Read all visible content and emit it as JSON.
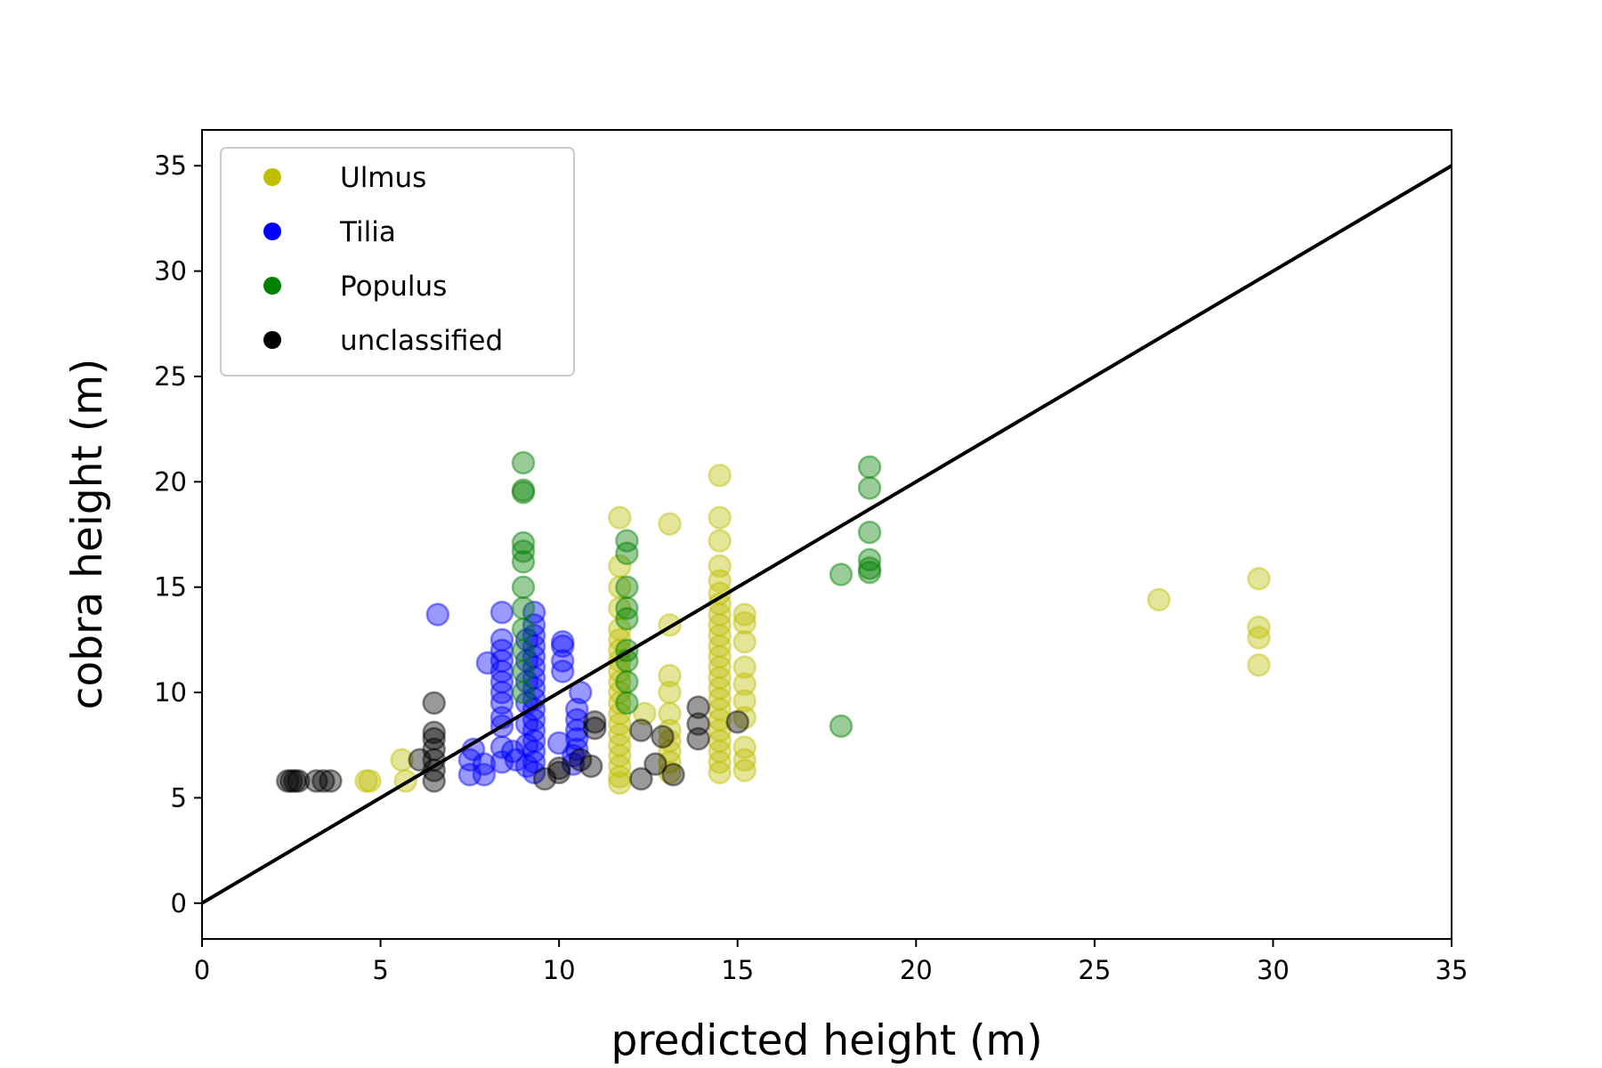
{
  "chart_data": {
    "type": "scatter",
    "title": "",
    "xlabel": "predicted height (m)",
    "ylabel": "cobra height (m)",
    "xlim": [
      0,
      35
    ],
    "ylim": [
      -1.7,
      36.7
    ],
    "xticks": [
      "0",
      "5",
      "10",
      "15",
      "20",
      "25",
      "30",
      "35"
    ],
    "yticks": [
      "0",
      "5",
      "10",
      "15",
      "20",
      "25",
      "30",
      "35"
    ],
    "grid": false,
    "legend_position": "top-left",
    "reference_line": {
      "x": [
        0,
        35
      ],
      "y": [
        0,
        35
      ],
      "color": "#000000"
    },
    "series": [
      {
        "name": "Ulmus",
        "color": "#bfbf00",
        "points": [
          [
            4.6,
            5.8
          ],
          [
            4.7,
            5.8
          ],
          [
            5.7,
            5.8
          ],
          [
            5.6,
            6.8
          ],
          [
            11.7,
            5.7
          ],
          [
            11.7,
            6.0
          ],
          [
            11.7,
            6.5
          ],
          [
            11.7,
            7.0
          ],
          [
            11.7,
            7.5
          ],
          [
            11.7,
            8.0
          ],
          [
            11.7,
            8.5
          ],
          [
            11.7,
            9.0
          ],
          [
            11.7,
            9.5
          ],
          [
            11.7,
            10.0
          ],
          [
            11.7,
            10.5
          ],
          [
            11.7,
            11.0
          ],
          [
            11.7,
            11.5
          ],
          [
            11.7,
            12.0
          ],
          [
            11.7,
            12.5
          ],
          [
            11.7,
            13.0
          ],
          [
            11.7,
            14.0
          ],
          [
            11.7,
            15.0
          ],
          [
            11.7,
            16.0
          ],
          [
            11.7,
            18.3
          ],
          [
            12.4,
            9.0
          ],
          [
            13.1,
            6.2
          ],
          [
            13.1,
            6.7
          ],
          [
            13.1,
            7.2
          ],
          [
            13.1,
            7.7
          ],
          [
            13.1,
            8.2
          ],
          [
            13.1,
            9.0
          ],
          [
            13.1,
            10.0
          ],
          [
            13.1,
            10.8
          ],
          [
            13.1,
            13.2
          ],
          [
            13.1,
            18.0
          ],
          [
            14.5,
            6.2
          ],
          [
            14.5,
            6.7
          ],
          [
            14.5,
            7.2
          ],
          [
            14.5,
            7.7
          ],
          [
            14.5,
            8.2
          ],
          [
            14.5,
            8.7
          ],
          [
            14.5,
            9.2
          ],
          [
            14.5,
            9.7
          ],
          [
            14.5,
            10.2
          ],
          [
            14.5,
            10.7
          ],
          [
            14.5,
            11.2
          ],
          [
            14.5,
            11.7
          ],
          [
            14.5,
            12.2
          ],
          [
            14.5,
            12.7
          ],
          [
            14.5,
            13.2
          ],
          [
            14.5,
            13.7
          ],
          [
            14.5,
            14.2
          ],
          [
            14.5,
            14.7
          ],
          [
            14.5,
            15.3
          ],
          [
            14.5,
            16.0
          ],
          [
            14.5,
            17.2
          ],
          [
            14.5,
            18.3
          ],
          [
            14.5,
            20.3
          ],
          [
            15.2,
            6.3
          ],
          [
            15.2,
            6.8
          ],
          [
            15.2,
            7.4
          ],
          [
            15.2,
            8.8
          ],
          [
            15.2,
            9.6
          ],
          [
            15.2,
            10.4
          ],
          [
            15.2,
            11.2
          ],
          [
            15.2,
            12.4
          ],
          [
            15.2,
            13.3
          ],
          [
            15.2,
            13.7
          ],
          [
            26.8,
            14.4
          ],
          [
            29.6,
            11.3
          ],
          [
            29.6,
            12.6
          ],
          [
            29.6,
            13.1
          ],
          [
            29.6,
            15.4
          ]
        ]
      },
      {
        "name": "Tilia",
        "color": "#0000ff",
        "points": [
          [
            6.6,
            13.7
          ],
          [
            7.5,
            6.1
          ],
          [
            7.5,
            6.8
          ],
          [
            7.6,
            7.3
          ],
          [
            7.9,
            6.1
          ],
          [
            7.9,
            6.6
          ],
          [
            8.0,
            11.4
          ],
          [
            8.4,
            6.7
          ],
          [
            8.4,
            7.4
          ],
          [
            8.4,
            8.4
          ],
          [
            8.4,
            8.8
          ],
          [
            8.4,
            9.5
          ],
          [
            8.4,
            10.0
          ],
          [
            8.4,
            10.5
          ],
          [
            8.4,
            11.0
          ],
          [
            8.4,
            11.5
          ],
          [
            8.4,
            12.0
          ],
          [
            8.4,
            12.5
          ],
          [
            8.4,
            13.8
          ],
          [
            8.7,
            7.2
          ],
          [
            8.8,
            6.8
          ],
          [
            9.3,
            6.2
          ],
          [
            9.3,
            6.7
          ],
          [
            9.3,
            7.2
          ],
          [
            9.3,
            7.7
          ],
          [
            9.3,
            8.2
          ],
          [
            9.3,
            8.7
          ],
          [
            9.3,
            9.2
          ],
          [
            9.3,
            9.7
          ],
          [
            9.3,
            10.2
          ],
          [
            9.3,
            10.7
          ],
          [
            9.3,
            11.2
          ],
          [
            9.3,
            11.7
          ],
          [
            9.3,
            12.2
          ],
          [
            9.3,
            12.7
          ],
          [
            9.3,
            13.2
          ],
          [
            9.3,
            13.8
          ],
          [
            9.1,
            6.5
          ],
          [
            9.1,
            7.5
          ],
          [
            9.1,
            8.5
          ],
          [
            9.1,
            9.5
          ],
          [
            9.1,
            10.5
          ],
          [
            9.1,
            11.5
          ],
          [
            9.1,
            12.5
          ],
          [
            10.0,
            7.6
          ],
          [
            10.1,
            11.0
          ],
          [
            10.1,
            11.5
          ],
          [
            10.1,
            12.2
          ],
          [
            10.1,
            12.4
          ],
          [
            10.4,
            6.6
          ],
          [
            10.4,
            7.0
          ],
          [
            10.5,
            7.3
          ],
          [
            10.5,
            7.8
          ],
          [
            10.5,
            8.2
          ],
          [
            10.5,
            8.7
          ],
          [
            10.5,
            9.2
          ],
          [
            10.6,
            10.0
          ]
        ]
      },
      {
        "name": "Populus",
        "color": "#008000",
        "points": [
          [
            9.0,
            10.0
          ],
          [
            9.0,
            11.0
          ],
          [
            9.0,
            12.0
          ],
          [
            9.0,
            13.0
          ],
          [
            9.0,
            14.0
          ],
          [
            9.0,
            15.0
          ],
          [
            9.0,
            16.2
          ],
          [
            9.0,
            16.7
          ],
          [
            9.0,
            17.1
          ],
          [
            9.0,
            19.5
          ],
          [
            9.0,
            19.6
          ],
          [
            9.0,
            20.9
          ],
          [
            11.9,
            9.5
          ],
          [
            11.9,
            10.5
          ],
          [
            11.9,
            11.5
          ],
          [
            11.9,
            12.0
          ],
          [
            11.9,
            13.5
          ],
          [
            11.9,
            14.0
          ],
          [
            11.9,
            15.0
          ],
          [
            11.9,
            16.6
          ],
          [
            11.9,
            17.2
          ],
          [
            17.9,
            8.4
          ],
          [
            17.9,
            15.6
          ],
          [
            18.7,
            15.7
          ],
          [
            18.7,
            15.9
          ],
          [
            18.7,
            16.3
          ],
          [
            18.7,
            17.6
          ],
          [
            18.7,
            19.7
          ],
          [
            18.7,
            20.7
          ]
        ]
      },
      {
        "name": "unclassified",
        "color": "#000000",
        "points": [
          [
            2.4,
            5.8
          ],
          [
            2.5,
            5.8
          ],
          [
            2.6,
            5.8
          ],
          [
            2.7,
            5.8
          ],
          [
            3.2,
            5.8
          ],
          [
            3.4,
            5.8
          ],
          [
            3.6,
            5.8
          ],
          [
            6.1,
            6.8
          ],
          [
            6.5,
            5.8
          ],
          [
            6.5,
            6.3
          ],
          [
            6.5,
            6.8
          ],
          [
            6.5,
            7.3
          ],
          [
            6.5,
            7.8
          ],
          [
            6.5,
            8.1
          ],
          [
            6.5,
            9.5
          ],
          [
            9.6,
            5.9
          ],
          [
            10.0,
            6.2
          ],
          [
            10.0,
            6.4
          ],
          [
            10.6,
            6.8
          ],
          [
            10.9,
            6.5
          ],
          [
            11.0,
            8.3
          ],
          [
            11.0,
            8.6
          ],
          [
            12.3,
            5.9
          ],
          [
            12.3,
            8.2
          ],
          [
            12.7,
            6.6
          ],
          [
            12.9,
            7.9
          ],
          [
            13.2,
            6.1
          ],
          [
            13.9,
            7.8
          ],
          [
            13.9,
            8.5
          ],
          [
            13.9,
            9.3
          ],
          [
            15.0,
            8.6
          ]
        ]
      }
    ]
  }
}
